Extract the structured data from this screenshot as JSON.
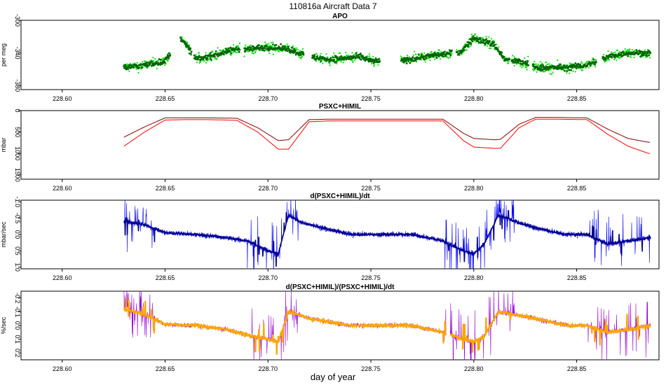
{
  "figure": {
    "title": "110816a    Aircraft Data 7",
    "xlabel": "day of year"
  },
  "chart_data": [
    {
      "type": "scatter",
      "title": "APO",
      "ylabel": "per meg",
      "ylim": [
        -300,
        -385
      ],
      "yticks": [
        -300,
        -340,
        -380
      ],
      "xlim": [
        228.58,
        228.89
      ],
      "xticks": [
        228.6,
        228.65,
        228.7,
        228.75,
        228.8,
        228.85
      ],
      "colors": {
        "light": "#00e000",
        "dark": "#006400"
      },
      "series": [
        {
          "name": "APO",
          "x": [
            228.63,
            228.64,
            228.65,
            228.658,
            228.665,
            228.675,
            228.685,
            228.69,
            228.7,
            228.71,
            228.72,
            228.73,
            228.745,
            228.75,
            228.765,
            228.775,
            228.79,
            228.793,
            228.8,
            228.81,
            228.815,
            228.825,
            228.83,
            228.845,
            228.855,
            228.865,
            228.875,
            228.885
          ],
          "y": [
            -358,
            -355,
            -350,
            -322,
            -348,
            -342,
            -335,
            -335,
            -333,
            -335,
            -345,
            -348,
            -345,
            -350,
            -350,
            -345,
            -340,
            -340,
            -322,
            -330,
            -348,
            -352,
            -358,
            -358,
            -355,
            -345,
            -340,
            -340
          ]
        }
      ]
    },
    {
      "type": "line",
      "title": "PSXC+HIMIL",
      "ylabel": "mbar",
      "ylim": [
        0,
        1600
      ],
      "yticks": [
        0,
        500,
        1000,
        1500
      ],
      "xlim": [
        228.58,
        228.89
      ],
      "xticks": [
        228.6,
        228.65,
        228.7,
        228.75,
        228.8,
        228.85
      ],
      "colors": {
        "HIMIL": "#ff0000",
        "PSXC": "#800000"
      },
      "series": [
        {
          "name": "HIMIL",
          "x": [
            228.63,
            228.64,
            228.65,
            228.66,
            228.67,
            228.68,
            228.685,
            228.695,
            228.705,
            228.71,
            228.72,
            228.73,
            228.75,
            228.77,
            228.785,
            228.795,
            228.8,
            228.81,
            228.813,
            228.822,
            228.83,
            228.84,
            228.855,
            228.865,
            228.875,
            228.885
          ],
          "y": [
            830,
            500,
            220,
            210,
            210,
            220,
            230,
            500,
            900,
            900,
            260,
            240,
            240,
            240,
            240,
            700,
            850,
            880,
            880,
            400,
            200,
            200,
            210,
            550,
            830,
            1000
          ]
        },
        {
          "name": "PSXC",
          "x": [
            228.63,
            228.64,
            228.65,
            228.66,
            228.67,
            228.68,
            228.685,
            228.695,
            228.705,
            228.71,
            228.72,
            228.73,
            228.75,
            228.77,
            228.785,
            228.795,
            228.8,
            228.81,
            228.813,
            228.822,
            228.83,
            228.84,
            228.855,
            228.865,
            228.875,
            228.885
          ],
          "y": [
            620,
            380,
            170,
            170,
            170,
            175,
            180,
            400,
            700,
            680,
            210,
            200,
            200,
            200,
            200,
            530,
            650,
            680,
            670,
            320,
            160,
            160,
            170,
            430,
            650,
            740
          ]
        }
      ]
    },
    {
      "type": "line",
      "title": "d(PSXC+HIMIL)/dt",
      "ylabel": "mbar/sec",
      "ylim": [
        -1.05,
        1.05
      ],
      "yticks": [
        -1.0,
        -0.5,
        0.0,
        0.5,
        1.0
      ],
      "xlim": [
        228.58,
        228.89
      ],
      "xticks": [
        228.6,
        228.65,
        228.7,
        228.75,
        228.8,
        228.85
      ],
      "colors": {
        "dark": "#00008b",
        "light": "#0000ff"
      },
      "series": [
        {
          "name": "d(PSXC+HIMIL)/dt",
          "x": [
            228.63,
            228.64,
            228.65,
            228.665,
            228.68,
            228.69,
            228.7,
            228.705,
            228.71,
            228.715,
            228.72,
            228.74,
            228.77,
            228.785,
            228.795,
            228.8,
            228.805,
            228.812,
            228.82,
            228.83,
            228.845,
            228.855,
            228.865,
            228.875,
            228.885
          ],
          "y": [
            -0.4,
            -0.3,
            -0.05,
            0.0,
            0.1,
            0.2,
            0.5,
            0.6,
            -0.6,
            -0.4,
            -0.3,
            0.0,
            0.0,
            0.2,
            0.5,
            0.6,
            0.3,
            -0.6,
            -0.4,
            -0.2,
            0.0,
            0.0,
            0.3,
            0.2,
            0.1
          ]
        }
      ]
    },
    {
      "type": "line",
      "title": "d(PSXC+HIMIL)/(PSXC+HIMIL)/dt",
      "ylabel": "%/sec",
      "ylim": [
        -0.25,
        0.25
      ],
      "yticks": [
        -0.2,
        -0.1,
        0.0,
        0.1,
        0.2
      ],
      "xlim": [
        228.58,
        228.89
      ],
      "xticks": [
        228.6,
        228.65,
        228.7,
        228.75,
        228.8,
        228.85
      ],
      "colors": {
        "main": "#ffa500",
        "spike": "#9400d3"
      },
      "series": [
        {
          "name": "d(PSXC+HIMIL)/(PSXC+HIMIL)/dt",
          "x": [
            228.63,
            228.64,
            228.65,
            228.665,
            228.68,
            228.69,
            228.7,
            228.705,
            228.71,
            228.715,
            228.72,
            228.74,
            228.77,
            228.785,
            228.795,
            228.8,
            228.805,
            228.812,
            228.82,
            228.83,
            228.845,
            228.855,
            228.865,
            228.875,
            228.885
          ],
          "y": [
            -0.12,
            -0.08,
            -0.01,
            0.0,
            0.03,
            0.07,
            0.1,
            0.12,
            -0.1,
            -0.08,
            -0.05,
            0.0,
            0.0,
            0.05,
            0.1,
            0.12,
            0.08,
            -0.1,
            -0.08,
            -0.05,
            0.0,
            0.0,
            0.05,
            0.03,
            0.0
          ]
        }
      ]
    }
  ]
}
